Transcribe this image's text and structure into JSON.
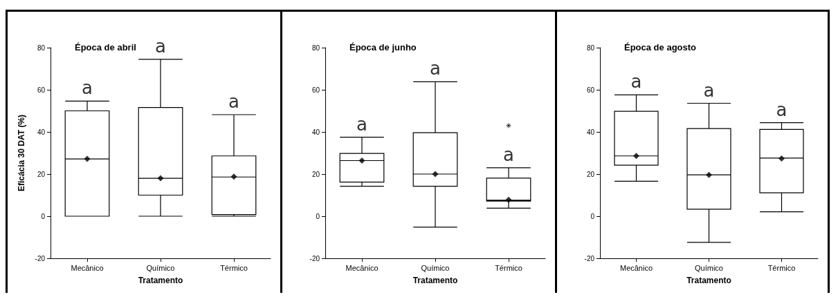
{
  "chart_data": [
    {
      "type": "box",
      "title": "Época de abril",
      "xlabel": "Tratamento",
      "ylabel": "Eficácia 30 DAT (%)",
      "categories": [
        "Mecânico",
        "Químico",
        "Térmico"
      ],
      "color": "#000000",
      "ylim": [
        -20,
        80
      ],
      "yticks": [
        -20,
        0,
        20,
        40,
        60,
        80
      ],
      "boxes": [
        {
          "low": 0,
          "q1": 0,
          "median": 27.2,
          "q3": 50,
          "high": 54.6,
          "mean": 27.2
        },
        {
          "low": 0,
          "q1": 10,
          "median": 18,
          "q3": 51.6,
          "high": 74.5,
          "mean": 18
        },
        {
          "low": 0,
          "q1": 0.8,
          "median": 18.6,
          "q3": 28.6,
          "high": 48.2,
          "mean": 18.8
        }
      ],
      "annotations": [
        "a",
        "a",
        "a"
      ]
    },
    {
      "type": "box",
      "title": "Época de junho",
      "xlabel": "Tratamento",
      "categories": [
        "Mecânico",
        "Químico",
        "Térmico"
      ],
      "color": "#000000",
      "ylim": [
        -20,
        80
      ],
      "yticks": [
        -20,
        0,
        20,
        40,
        60,
        80
      ],
      "boxes": [
        {
          "low": 14.2,
          "q1": 16.2,
          "median": 26.4,
          "q3": 29.8,
          "high": 37.5,
          "mean": 26.4
        },
        {
          "low": -5.2,
          "q1": 14.2,
          "median": 20,
          "q3": 39.6,
          "high": 63.8,
          "mean": 20
        },
        {
          "low": 3.8,
          "q1": 7.2,
          "median": 7.6,
          "q3": 18.1,
          "high": 23,
          "mean": 7.8,
          "outliers": [
            43
          ]
        }
      ],
      "annotations": [
        "a",
        "a",
        "a"
      ]
    },
    {
      "type": "box",
      "title": "Época de agosto",
      "xlabel": "Tratamento",
      "categories": [
        "Mecânico",
        "Químico",
        "Térmico"
      ],
      "color": "#000000",
      "ylim": [
        -20,
        80
      ],
      "yticks": [
        -20,
        0,
        20,
        40,
        60,
        80
      ],
      "boxes": [
        {
          "low": 16.6,
          "q1": 24.2,
          "median": 28.6,
          "q3": 49.8,
          "high": 57.6,
          "mean": 28.6
        },
        {
          "low": -12.4,
          "q1": 3.3,
          "median": 19.6,
          "q3": 41.6,
          "high": 53.6,
          "mean": 19.6
        },
        {
          "low": 2.1,
          "q1": 11.1,
          "median": 27.6,
          "q3": 41.2,
          "high": 44.4,
          "mean": 27.4
        }
      ],
      "annotations": [
        "a",
        "a",
        "a"
      ]
    }
  ]
}
